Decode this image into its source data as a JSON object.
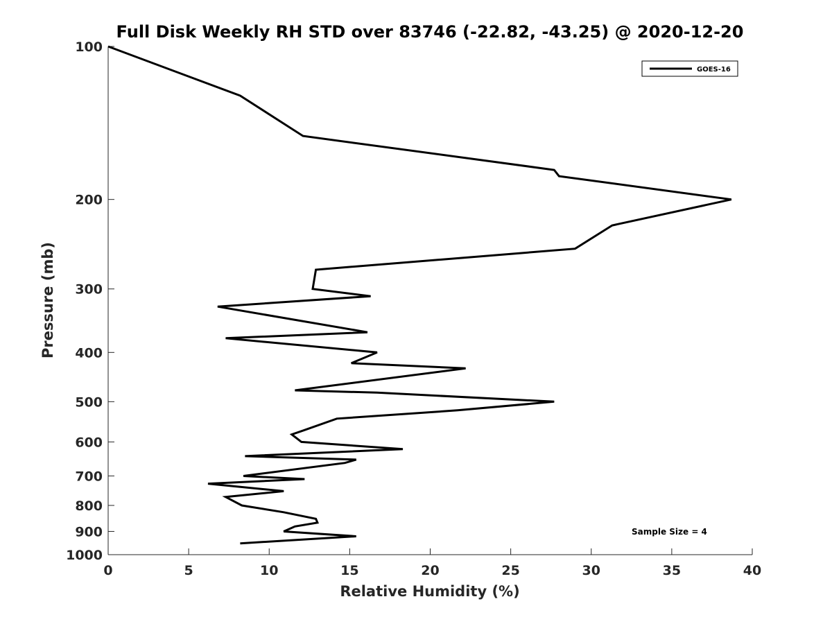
{
  "chart_data": {
    "type": "line",
    "title": "Full Disk Weekly RH STD over 83746 (-22.82, -43.25) @ 2020-12-20",
    "xlabel": "Relative Humidity (%)",
    "ylabel": "Pressure (mb)",
    "xlim": [
      0,
      40
    ],
    "ylim": [
      100,
      1000
    ],
    "yscale": "log",
    "yreversed": true,
    "xticks": [
      0,
      5,
      10,
      15,
      20,
      25,
      30,
      35,
      40
    ],
    "yticks": [
      100,
      200,
      300,
      400,
      500,
      600,
      700,
      800,
      900,
      1000
    ],
    "grid": false,
    "legend_position": "top-right",
    "series": [
      {
        "name": "GOES-16",
        "color": "#000000",
        "points": [
          [
            0.0,
            100
          ],
          [
            8.2,
            125
          ],
          [
            12.1,
            150
          ],
          [
            27.7,
            175
          ],
          [
            28.0,
            180
          ],
          [
            38.7,
            200
          ],
          [
            31.3,
            225
          ],
          [
            29.0,
            250
          ],
          [
            12.9,
            275
          ],
          [
            12.7,
            300
          ],
          [
            16.3,
            310
          ],
          [
            6.8,
            325
          ],
          [
            16.1,
            365
          ],
          [
            7.3,
            375
          ],
          [
            16.7,
            400
          ],
          [
            15.1,
            420
          ],
          [
            22.2,
            430
          ],
          [
            11.6,
            475
          ],
          [
            16.7,
            480
          ],
          [
            27.7,
            500
          ],
          [
            21.7,
            520
          ],
          [
            14.2,
            540
          ],
          [
            12.1,
            570
          ],
          [
            11.4,
            580
          ],
          [
            12.0,
            600
          ],
          [
            18.3,
            620
          ],
          [
            8.5,
            640
          ],
          [
            15.4,
            650
          ],
          [
            14.7,
            660
          ],
          [
            8.4,
            700
          ],
          [
            12.2,
            710
          ],
          [
            6.2,
            725
          ],
          [
            10.9,
            750
          ],
          [
            7.3,
            770
          ],
          [
            8.3,
            800
          ],
          [
            10.9,
            825
          ],
          [
            12.9,
            850
          ],
          [
            13.0,
            865
          ],
          [
            11.6,
            880
          ],
          [
            10.9,
            900
          ],
          [
            15.4,
            920
          ],
          [
            8.2,
            950
          ]
        ]
      }
    ],
    "annotations": [
      "Sample Size = 4"
    ]
  }
}
